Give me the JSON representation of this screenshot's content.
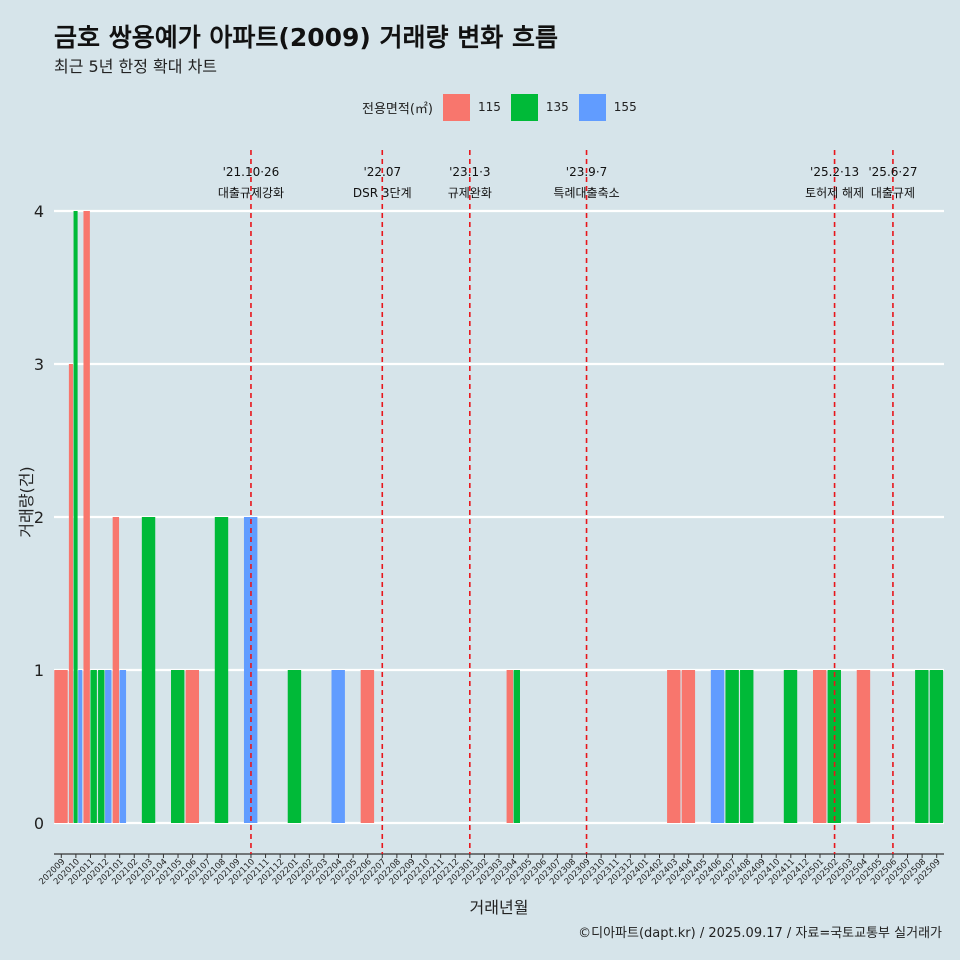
{
  "title": "금호 쌍용예가 아파트(2009) 거래량 변화 흐름",
  "subtitle": "최근 5년 한정 확대 차트",
  "caption": "©디아파트(dapt.kr) / 2025.09.17 / 자료=국토교통부 실거래가",
  "legend": {
    "title": "전용면적(㎡)",
    "items": [
      {
        "label": "115",
        "color": "#f8766d"
      },
      {
        "label": "135",
        "color": "#00ba38"
      },
      {
        "label": "155",
        "color": "#619cff"
      }
    ]
  },
  "chart_data": {
    "type": "bar",
    "xlabel": "거래년월",
    "ylabel": "거래량(건)",
    "ylim": [
      0,
      4
    ],
    "yticks": [
      0,
      1,
      2,
      3,
      4
    ],
    "categories": [
      "202009",
      "202010",
      "202011",
      "202012",
      "202101",
      "202102",
      "202103",
      "202104",
      "202105",
      "202106",
      "202107",
      "202108",
      "202109",
      "202110",
      "202111",
      "202112",
      "202201",
      "202202",
      "202203",
      "202204",
      "202205",
      "202206",
      "202207",
      "202208",
      "202209",
      "202210",
      "202211",
      "202212",
      "202301",
      "202302",
      "202303",
      "202304",
      "202305",
      "202306",
      "202307",
      "202308",
      "202309",
      "202310",
      "202311",
      "202312",
      "202401",
      "202402",
      "202403",
      "202404",
      "202405",
      "202406",
      "202407",
      "202408",
      "202409",
      "202410",
      "202411",
      "202412",
      "202501",
      "202502",
      "202503",
      "202504",
      "202505",
      "202506",
      "202507",
      "202508",
      "202509"
    ],
    "series": [
      {
        "name": "115",
        "color": "#f8766d",
        "values": [
          1,
          3,
          4,
          0,
          2,
          0,
          0,
          0,
          0,
          1,
          0,
          0,
          0,
          0,
          0,
          0,
          0,
          0,
          0,
          0,
          0,
          1,
          0,
          0,
          0,
          0,
          0,
          0,
          0,
          0,
          0,
          1,
          0,
          0,
          0,
          0,
          0,
          0,
          0,
          0,
          0,
          0,
          1,
          1,
          0,
          0,
          0,
          0,
          0,
          0,
          0,
          0,
          1,
          0,
          0,
          1,
          0,
          0,
          0,
          0,
          0
        ]
      },
      {
        "name": "135",
        "color": "#00ba38",
        "values": [
          0,
          4,
          1,
          1,
          0,
          0,
          2,
          0,
          1,
          0,
          0,
          2,
          0,
          0,
          0,
          0,
          1,
          0,
          0,
          0,
          0,
          0,
          0,
          0,
          0,
          0,
          0,
          0,
          0,
          0,
          0,
          1,
          0,
          0,
          0,
          0,
          0,
          0,
          0,
          0,
          0,
          0,
          0,
          0,
          0,
          0,
          1,
          1,
          0,
          0,
          1,
          0,
          0,
          1,
          0,
          0,
          0,
          0,
          0,
          1,
          1
        ]
      },
      {
        "name": "155",
        "color": "#619cff",
        "values": [
          0,
          1,
          0,
          1,
          1,
          0,
          0,
          0,
          0,
          0,
          0,
          0,
          0,
          2,
          0,
          0,
          0,
          0,
          0,
          1,
          0,
          0,
          0,
          0,
          0,
          0,
          0,
          0,
          0,
          0,
          0,
          0,
          0,
          0,
          0,
          0,
          0,
          0,
          0,
          0,
          0,
          0,
          0,
          0,
          0,
          1,
          0,
          0,
          0,
          0,
          0,
          0,
          0,
          0,
          0,
          0,
          0,
          0,
          0,
          0,
          0
        ]
      }
    ],
    "annotations": [
      {
        "x": "202110",
        "line1": "'21.10·26",
        "line2": "대출규제강화"
      },
      {
        "x": "202207",
        "line1": "'22.07",
        "line2": "DSR 3단계"
      },
      {
        "x": "202301",
        "line1": "'23.1·3",
        "line2": "규제완화"
      },
      {
        "x": "202309",
        "line1": "'23.9·7",
        "line2": "특례대출축소"
      },
      {
        "x": "202502",
        "line1": "'25.2·13",
        "line2": "토허제 해제"
      },
      {
        "x": "202506",
        "line1": "'25.6·27",
        "line2": "대출규제"
      }
    ],
    "grid": true,
    "legend_position": "top"
  }
}
